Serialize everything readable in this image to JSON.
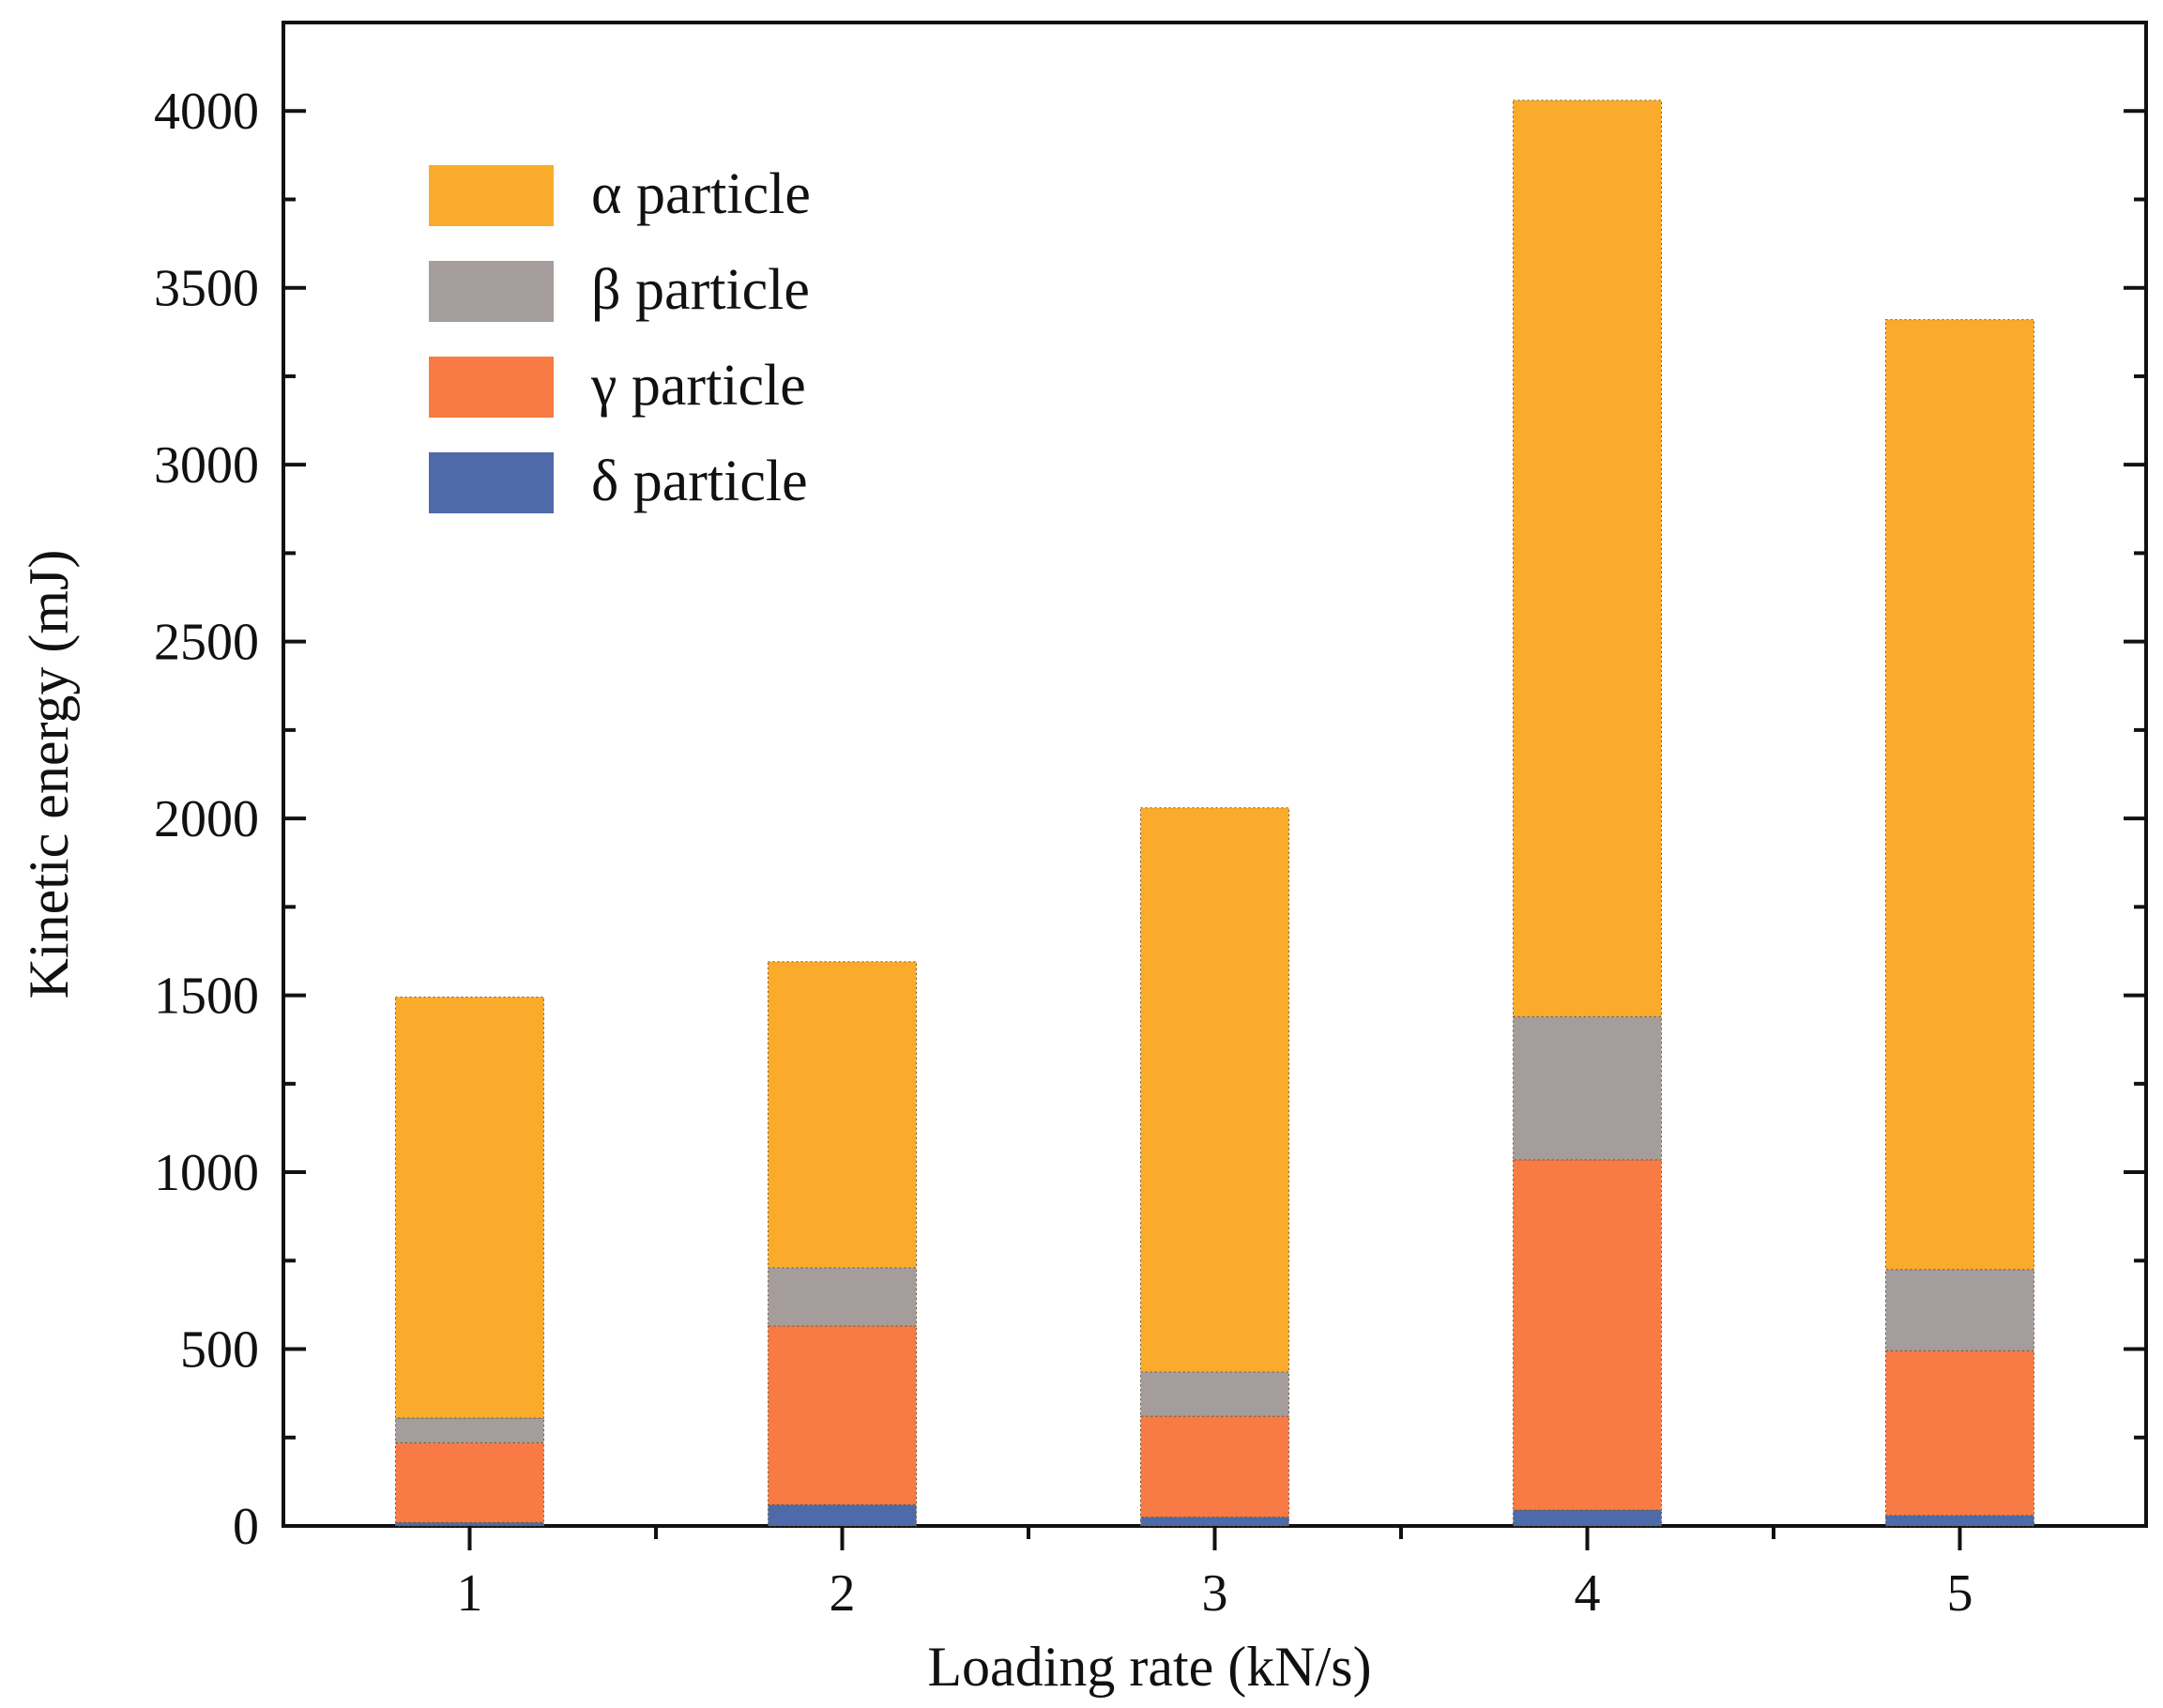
{
  "chart_data": {
    "type": "bar",
    "stacked": true,
    "categories": [
      "1",
      "2",
      "3",
      "4",
      "5"
    ],
    "series": [
      {
        "name": "δ particle",
        "color": "#4f6aa8",
        "values": [
          10,
          60,
          25,
          45,
          30
        ]
      },
      {
        "name": "γ particle",
        "color": "#f87a44",
        "values": [
          225,
          505,
          285,
          990,
          465
        ]
      },
      {
        "name": "β particle",
        "color": "#a59d9b",
        "values": [
          70,
          165,
          125,
          405,
          230
        ]
      },
      {
        "name": "α particle",
        "color": "#fbab2b",
        "values": [
          1190,
          865,
          1595,
          2590,
          2685
        ]
      }
    ],
    "legend_order": [
      "α particle",
      "β particle",
      "γ particle",
      "δ particle"
    ],
    "legend_position": "top-left",
    "xlabel": "Loading rate  (kN/s)",
    "ylabel": "Kinetic energy (mJ)",
    "ylim": [
      0,
      4250
    ],
    "yticks": [
      0,
      500,
      1000,
      1500,
      2000,
      2500,
      3000,
      3500,
      4000
    ],
    "grid": false
  }
}
